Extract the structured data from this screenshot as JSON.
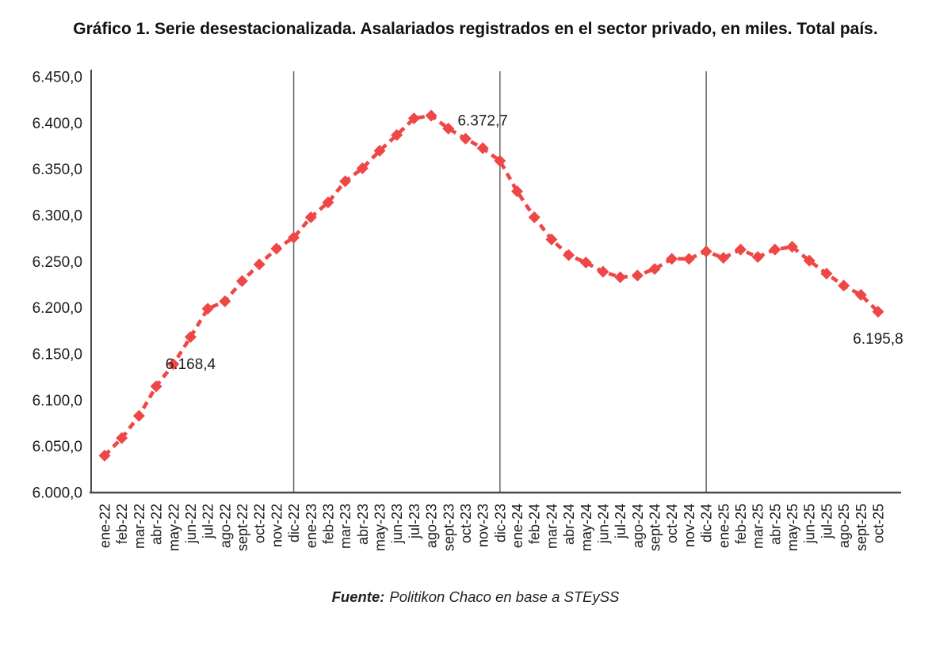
{
  "footer": {
    "label": "Fuente:",
    "text": "Politikon Chaco en base a STEySS"
  },
  "chart_data": {
    "type": "line",
    "title": "Gráfico 1. Serie desestacionalizada. Asalariados registrados en el sector privado, en miles. Total país.",
    "categories": [
      "ene-22",
      "feb-22",
      "mar-22",
      "abr-22",
      "may-22",
      "jun-22",
      "jul-22",
      "ago-22",
      "sept-22",
      "oct-22",
      "nov-22",
      "dic-22",
      "ene-23",
      "feb-23",
      "mar-23",
      "abr-23",
      "may-23",
      "jun-23",
      "jul-23",
      "ago-23",
      "sept-23",
      "oct-23",
      "nov-23",
      "dic-23",
      "ene-24",
      "feb-24",
      "mar-24",
      "abr-24",
      "may-24",
      "jun-24",
      "jul-24",
      "ago-24",
      "sept-24",
      "oct-24",
      "nov-24",
      "dic-24",
      "ene-25",
      "feb-25",
      "mar-25",
      "abr-25",
      "may-25",
      "jun-25",
      "jul-25",
      "ago-25",
      "sept-25",
      "oct-25"
    ],
    "values": [
      6040,
      6059,
      6083,
      6115,
      6139,
      6168.4,
      6199,
      6207,
      6229,
      6247,
      6264,
      6276,
      6298,
      6314,
      6337,
      6351,
      6370,
      6387,
      6405,
      6408,
      6394,
      6383,
      6372.7,
      6359,
      6326,
      6298,
      6274,
      6257,
      6249,
      6239,
      6233,
      6235,
      6242,
      6253,
      6253,
      6261,
      6254,
      6263,
      6255,
      6263,
      6266,
      6251,
      6237,
      6224,
      6214,
      6195.8
    ],
    "xlabel": "",
    "ylabel": "",
    "ylim": [
      6000,
      6450
    ],
    "ytick_step": 50,
    "ytick_labels": [
      "6.450,0",
      "6.400,0",
      "6.350,0",
      "6.300,0",
      "6.250,0",
      "6.200,0",
      "6.150,0",
      "6.100,0",
      "6.050,0",
      "6.000,0"
    ],
    "grid": false,
    "legend": "none",
    "line_color": "#EE4746",
    "line_style": "dashed",
    "marker": "diamond",
    "axis_color": "#4a4a4a",
    "separator_color": "#6e6e6e",
    "text_color": "#1c1c1c",
    "separators": [
      "dic-22",
      "dic-23",
      "dic-24"
    ],
    "annotations": [
      {
        "category": "jun-22",
        "text": "6.168,4",
        "dy": 34
      },
      {
        "category": "nov-23",
        "text": "6.372,7",
        "dy": -35
      },
      {
        "category": "oct-25",
        "text": "6.195,8",
        "dy": 34
      }
    ]
  }
}
